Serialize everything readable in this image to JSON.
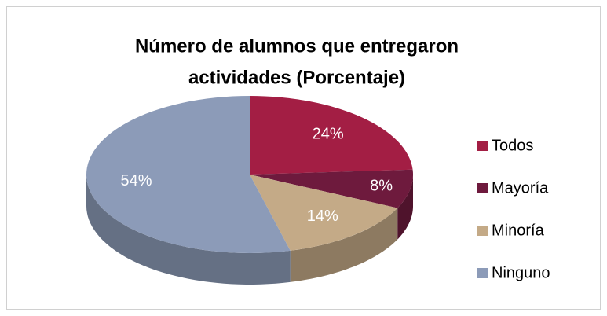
{
  "chart_data": {
    "type": "pie3d",
    "title": [
      "Número de alumnos que entregaron",
      "actividades (Porcentaje)"
    ],
    "categories": [
      "Todos",
      "Mayoría",
      "Minoría",
      "Ninguno"
    ],
    "values": [
      24,
      8,
      14,
      54
    ],
    "value_labels": [
      "24%",
      "8%",
      "14%",
      "54%"
    ],
    "colors": [
      "#a31e44",
      "#6e1a3d",
      "#c4aa87",
      "#8c9bb8"
    ],
    "legend": "right"
  }
}
